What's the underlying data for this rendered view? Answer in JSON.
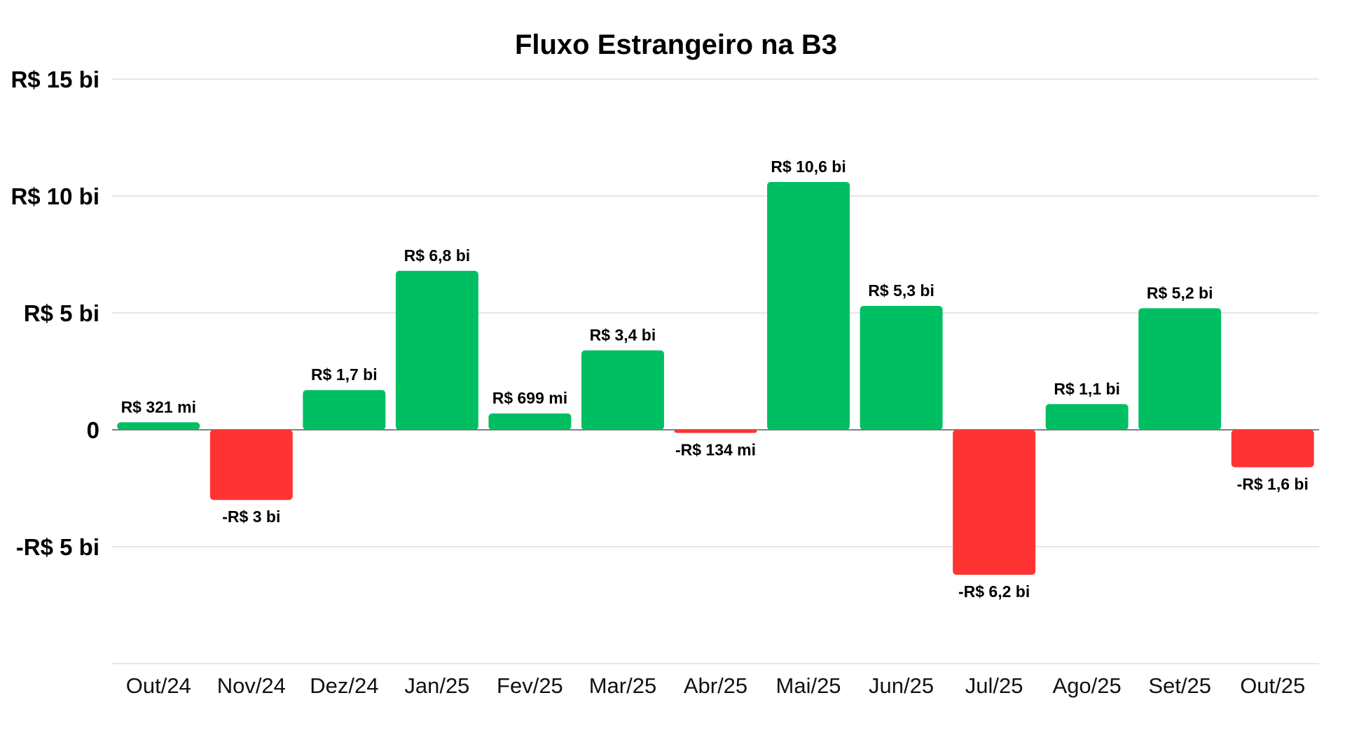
{
  "chart_data": {
    "type": "bar",
    "title": "Fluxo Estrangeiro na B3",
    "xlabel": "",
    "ylabel": "",
    "ylim": [
      -10,
      15
    ],
    "grid": true,
    "unit": "R$ bi",
    "yticks": [
      {
        "value": 15,
        "label": "R$ 15 bi"
      },
      {
        "value": 10,
        "label": "R$ 10 bi"
      },
      {
        "value": 5,
        "label": "R$ 5 bi"
      },
      {
        "value": 0,
        "label": "0"
      },
      {
        "value": -5,
        "label": "-R$ 5 bi"
      }
    ],
    "categories": [
      "Out/24",
      "Nov/24",
      "Dez/24",
      "Jan/25",
      "Fev/25",
      "Mar/25",
      "Abr/25",
      "Mai/25",
      "Jun/25",
      "Jul/25",
      "Ago/25",
      "Set/25",
      "Out/25"
    ],
    "values": [
      0.321,
      -3,
      1.7,
      6.8,
      0.699,
      3.4,
      -0.134,
      10.6,
      5.3,
      -6.2,
      1.1,
      5.2,
      -1.6
    ],
    "data_labels": [
      "R$ 321 mi",
      "-R$ 3 bi",
      "R$ 1,7 bi",
      "R$ 6,8 bi",
      "R$ 699 mi",
      "R$ 3,4 bi",
      "-R$ 134 mi",
      "R$ 10,6 bi",
      "R$ 5,3 bi",
      "-R$ 6,2 bi",
      "R$ 1,1 bi",
      "R$ 5,2 bi",
      "-R$ 1,6 bi"
    ],
    "colors": {
      "positive": "#00BF63",
      "negative": "#FF3333",
      "grid": "#DDDDDD"
    }
  }
}
